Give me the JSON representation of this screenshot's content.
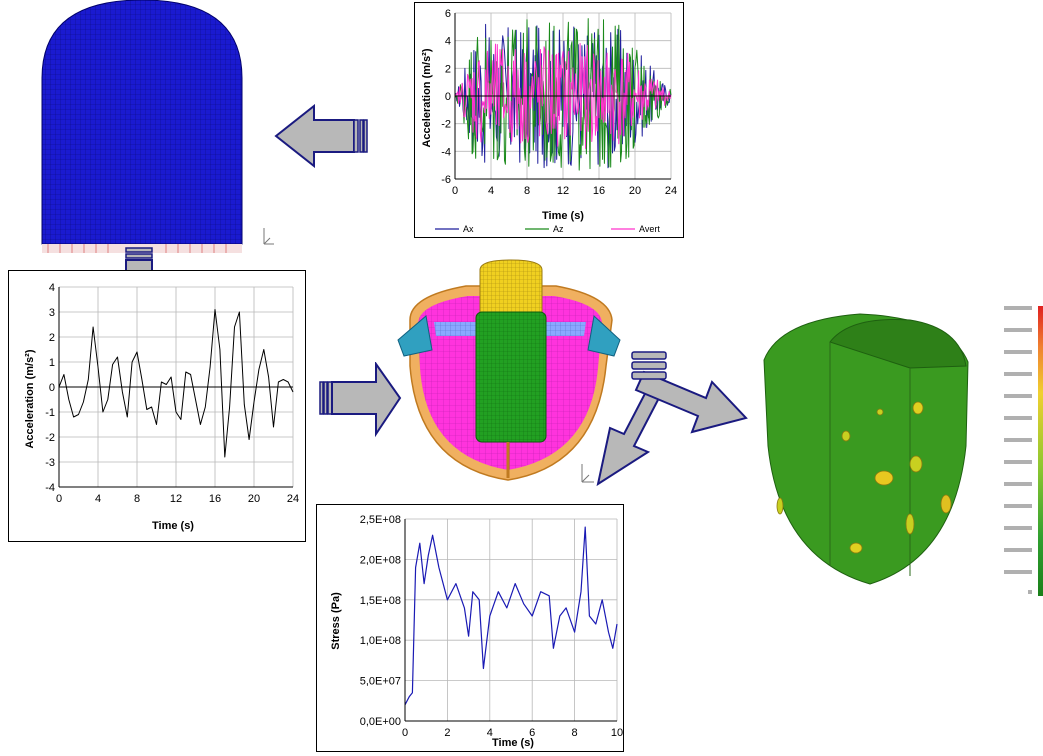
{
  "chart_data": [
    {
      "id": "input-accel",
      "type": "line",
      "xlabel": "Time (s)",
      "ylabel": "Acceleration (m/s²)",
      "xlim": [
        0,
        24
      ],
      "ylim": [
        -6,
        6
      ],
      "xticks": [
        "0",
        "4",
        "8",
        "12",
        "16",
        "20",
        "24"
      ],
      "yticks": [
        "-6",
        "-4",
        "-2",
        "0",
        "2",
        "4",
        "6"
      ],
      "grid": true,
      "legend_position": "bottom",
      "series": [
        {
          "name": "Ax",
          "color": "#1f1f9c",
          "amplitude": 5.2
        },
        {
          "name": "Az",
          "color": "#1a8a1a",
          "amplitude": 5.6
        },
        {
          "name": "Avert",
          "color": "#ff33cc",
          "amplitude": 3.8
        }
      ]
    },
    {
      "id": "response-accel",
      "type": "line",
      "xlabel": "Time (s)",
      "ylabel": "Acceleration (m/s²)",
      "xlim": [
        0,
        24
      ],
      "ylim": [
        -4,
        4
      ],
      "xticks": [
        "0",
        "4",
        "8",
        "12",
        "16",
        "20",
        "24"
      ],
      "yticks": [
        "-4",
        "-3",
        "-2",
        "-1",
        "0",
        "1",
        "2",
        "3",
        "4"
      ],
      "grid": true,
      "series": [
        {
          "color": "#000000",
          "x": [
            0,
            0.5,
            1,
            1.5,
            2,
            2.5,
            3,
            3.5,
            4,
            4.5,
            5,
            5.5,
            6,
            6.5,
            7,
            7.5,
            8,
            8.5,
            9,
            9.5,
            10,
            10.5,
            11,
            11.5,
            12,
            12.5,
            13,
            13.5,
            14,
            14.5,
            15,
            15.5,
            16,
            16.5,
            17,
            17.5,
            18,
            18.5,
            19,
            19.5,
            20,
            20.5,
            21,
            21.5,
            22,
            22.5,
            23,
            23.5,
            24
          ],
          "y": [
            0,
            0.5,
            -0.5,
            -1.2,
            -1.1,
            -0.6,
            0.3,
            2.4,
            0.8,
            -1.0,
            -0.5,
            0.9,
            1.2,
            -0.2,
            -1.2,
            1.0,
            1.4,
            0.3,
            -0.9,
            -0.8,
            -1.5,
            0.2,
            0.1,
            0.4,
            -1.0,
            -1.3,
            0.6,
            0.5,
            -0.5,
            -1.5,
            -0.8,
            0.8,
            3.1,
            1.5,
            -2.8,
            -0.8,
            2.4,
            3.0,
            -0.7,
            -2.1,
            -0.6,
            0.7,
            1.5,
            0.4,
            -1.6,
            0.2,
            0.3,
            0.2,
            -0.2
          ]
        }
      ]
    },
    {
      "id": "stress",
      "type": "line",
      "xlabel": "Time (s)",
      "ylabel": "Stress (Pa)",
      "xlim": [
        0,
        10
      ],
      "ylim": [
        0,
        250000000
      ],
      "xticks": [
        "0",
        "2",
        "4",
        "6",
        "8",
        "10"
      ],
      "yticks": [
        "0,0E+00",
        "5,0E+07",
        "1,0E+08",
        "1,5E+08",
        "2,0E+08",
        "2,5E+08"
      ],
      "grid": true,
      "series": [
        {
          "color": "#1a1ab4",
          "x": [
            0,
            0.2,
            0.35,
            0.5,
            0.7,
            0.9,
            1.1,
            1.3,
            1.6,
            2.0,
            2.4,
            2.8,
            3.0,
            3.2,
            3.5,
            3.7,
            4.0,
            4.4,
            4.8,
            5.2,
            5.6,
            6.0,
            6.4,
            6.8,
            7.0,
            7.3,
            7.6,
            8.0,
            8.3,
            8.5,
            8.7,
            9.0,
            9.3,
            9.6,
            9.8,
            10
          ],
          "y": [
            20000000,
            30000000,
            35000000,
            190000000,
            220000000,
            170000000,
            205000000,
            230000000,
            190000000,
            150000000,
            170000000,
            140000000,
            105000000,
            160000000,
            150000000,
            65000000,
            130000000,
            160000000,
            140000000,
            170000000,
            145000000,
            130000000,
            160000000,
            155000000,
            90000000,
            130000000,
            140000000,
            110000000,
            160000000,
            240000000,
            130000000,
            120000000,
            150000000,
            110000000,
            90000000,
            120000000
          ]
        }
      ]
    }
  ]
}
